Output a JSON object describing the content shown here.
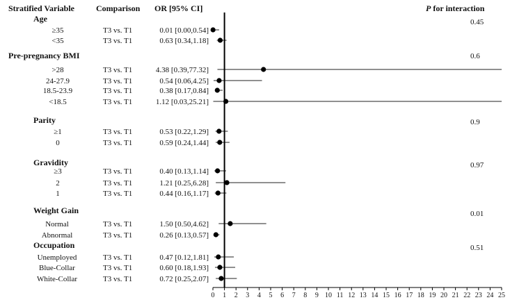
{
  "chart_data": {
    "type": "forest",
    "headers": {
      "variable": "Stratified Variable",
      "comparison": "Comparison",
      "or": "OR [95% CI]",
      "p_prefix": "P",
      "p_suffix": " for interaction"
    },
    "xlim": [
      0,
      25
    ],
    "reference_line": 1,
    "ticks": [
      "0",
      "1",
      "2",
      "3",
      "4",
      "5",
      "6",
      "7",
      "8",
      "9",
      "10",
      "11",
      "12",
      "13",
      "14",
      "15",
      "16",
      "17",
      "18",
      "19",
      "20",
      "21",
      "22",
      "23",
      "24",
      "25"
    ],
    "groups": [
      {
        "name": "Age",
        "p": "0.45",
        "rows": [
          {
            "label": "≥35",
            "comparison": "T3 vs. T1",
            "or_text": "0.01 [0.00,0.54]",
            "or": 0.01,
            "lo": 0.0,
            "hi": 0.54
          },
          {
            "label": "<35",
            "comparison": "T3 vs. T1",
            "or_text": "0.63 [0.34,1.18]",
            "or": 0.63,
            "lo": 0.34,
            "hi": 1.18
          }
        ]
      },
      {
        "name": "Pre-pregnancy BMI",
        "p": "0.6",
        "rows": [
          {
            "label": ">28",
            "comparison": "T3 vs. T1",
            "or_text": "4.38 [0.39,77.32]",
            "or": 4.38,
            "lo": 0.39,
            "hi": 77.32
          },
          {
            "label": "24-27.9",
            "comparison": "T3 vs. T1",
            "or_text": "0.54 [0.06,4.25]",
            "or": 0.54,
            "lo": 0.06,
            "hi": 4.25
          },
          {
            "label": "18.5-23.9",
            "comparison": "T3 vs. T1",
            "or_text": "0.38 [0.17,0.84]",
            "or": 0.38,
            "lo": 0.17,
            "hi": 0.84
          },
          {
            "label": "<18.5",
            "comparison": "T3 vs. T1",
            "or_text": "1.12 [0.03,25.21]",
            "or": 1.12,
            "lo": 0.03,
            "hi": 25.21
          }
        ]
      },
      {
        "name": "Parity",
        "p": "0.9",
        "rows": [
          {
            "label": "≥1",
            "comparison": "T3 vs. T1",
            "or_text": "0.53 [0.22,1.29]",
            "or": 0.53,
            "lo": 0.22,
            "hi": 1.29
          },
          {
            "label": "0",
            "comparison": "T3 vs. T1",
            "or_text": "0.59 [0.24,1.44]",
            "or": 0.59,
            "lo": 0.24,
            "hi": 1.44
          }
        ]
      },
      {
        "name": "Gravidity",
        "p": "0.97",
        "rows": [
          {
            "label": "≥3",
            "comparison": "T3 vs. T1",
            "or_text": "0.40 [0.13,1.14]",
            "or": 0.4,
            "lo": 0.13,
            "hi": 1.14
          },
          {
            "label": "2",
            "comparison": "T3 vs. T1",
            "or_text": "1.21 [0.25,6.28]",
            "or": 1.21,
            "lo": 0.25,
            "hi": 6.28
          },
          {
            "label": "1",
            "comparison": "T3 vs. T1",
            "or_text": "0.44 [0.16,1.17]",
            "or": 0.44,
            "lo": 0.16,
            "hi": 1.17
          }
        ]
      },
      {
        "name": "Weight Gain",
        "p": "0.01",
        "rows": [
          {
            "label": "Normal",
            "comparison": "T3 vs. T1",
            "or_text": "1.50 [0.50,4.62]",
            "or": 1.5,
            "lo": 0.5,
            "hi": 4.62
          },
          {
            "label": "Abnormal",
            "comparison": "T3 vs. T1",
            "or_text": "0.26 [0.13,0.57]",
            "or": 0.26,
            "lo": 0.13,
            "hi": 0.57
          }
        ]
      },
      {
        "name": "Occupation",
        "p": "0.51",
        "rows": [
          {
            "label": "Unemployed",
            "comparison": "T3 vs. T1",
            "or_text": "0.47 [0.12,1.81]",
            "or": 0.47,
            "lo": 0.12,
            "hi": 1.81
          },
          {
            "label": "Blue-Collar",
            "comparison": "T3 vs. T1",
            "or_text": "0.60 [0.18,1.93]",
            "or": 0.6,
            "lo": 0.18,
            "hi": 1.93
          },
          {
            "label": "White-Collar",
            "comparison": "T3 vs. T1",
            "or_text": "0.72 [0.25,2.07]",
            "or": 0.72,
            "lo": 0.25,
            "hi": 2.07
          }
        ]
      }
    ]
  }
}
